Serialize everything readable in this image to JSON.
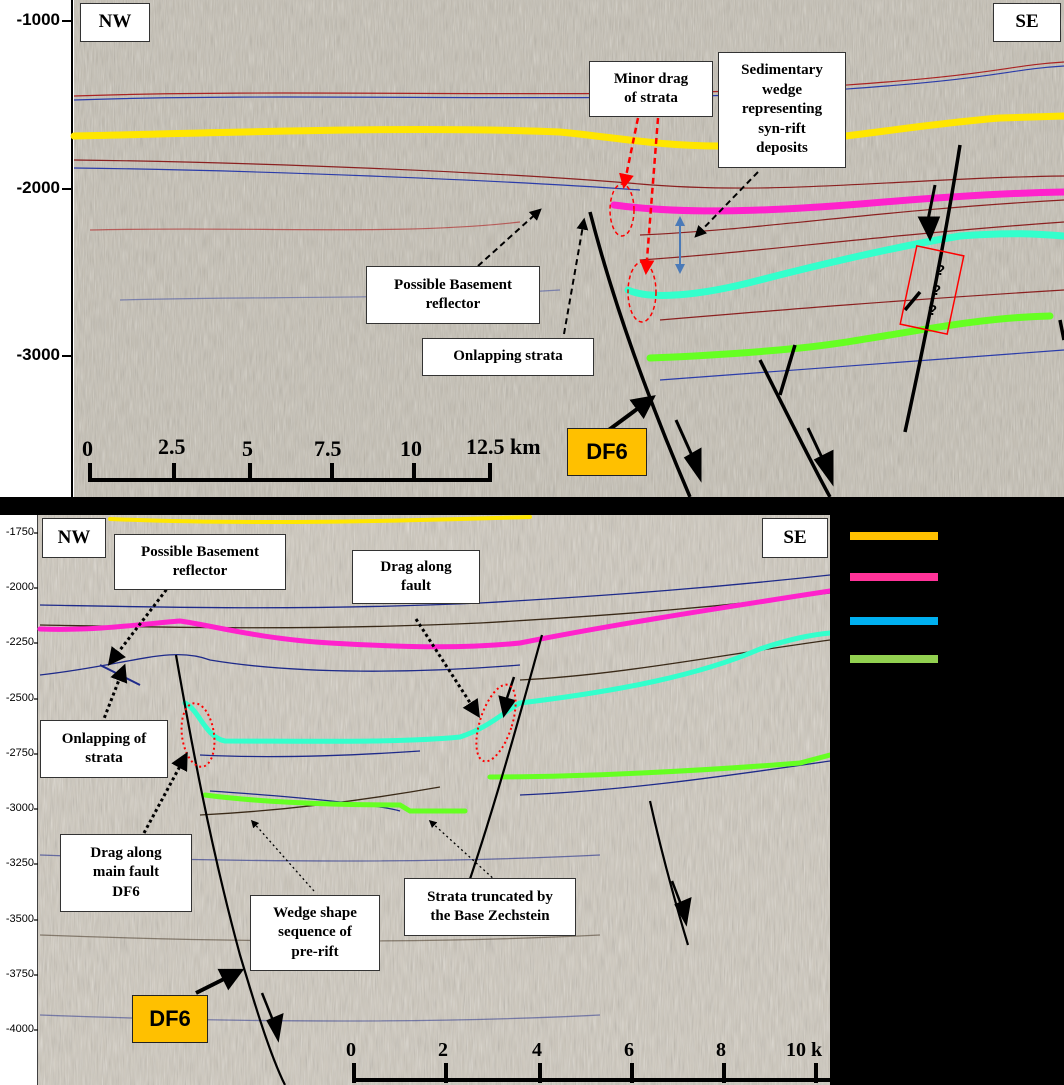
{
  "top_panel": {
    "dir_left": "NW",
    "dir_right": "SE",
    "y_ticks": [
      "-1000",
      "-2000",
      "-3000"
    ],
    "labels": {
      "minor_drag": "Minor drag\nof strata",
      "sedimentary_wedge": "Sedimentary\nwedge\nrepresenting\nsyn-rift\ndeposits",
      "basement": "Possible Basement\nreflector",
      "onlapping": "Onlapping strata"
    },
    "fault_label": "DF6",
    "scale": {
      "ticks": [
        "0",
        "2.5",
        "5",
        "7.5",
        "10",
        "12.5 km"
      ]
    },
    "question_marks": [
      "?",
      "?",
      "?"
    ]
  },
  "bottom_panel": {
    "dir_left": "NW",
    "dir_right": "SE",
    "y_ticks": [
      "-1750",
      "-2000",
      "-2250",
      "-2500",
      "-2750",
      "-3000",
      "-3250",
      "-3500",
      "-3750",
      "-4000"
    ],
    "labels": {
      "basement": "Possible Basement\nreflector",
      "drag_fault": "Drag along\nfault",
      "onlapping": "Onlapping of\nstrata",
      "drag_main": "Drag along\nmain fault\nDF6",
      "wedge": "Wedge shape\nsequence of\npre-rift",
      "truncated": "Strata truncated by\nthe Base Zechstein"
    },
    "fault_label": "DF6",
    "scale": {
      "ticks": [
        "0",
        "2",
        "4",
        "6",
        "8",
        "10 k"
      ]
    }
  },
  "legend": {
    "colors": [
      "#ffc000",
      "#ff3399",
      "#00b0f0",
      "#92d050"
    ]
  },
  "horizon_colors": {
    "yellow": "#ffe600",
    "magenta": "#ff22cc",
    "cyan": "#33ffcc",
    "green": "#66ff22"
  }
}
